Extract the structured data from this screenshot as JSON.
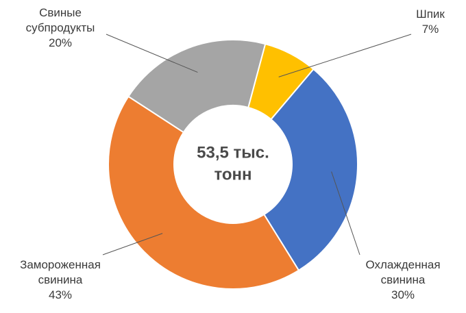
{
  "chart_data": {
    "type": "donut",
    "center_text": [
      "53,5 тыс.",
      "тонн"
    ],
    "categories": [
      [
        "Шпик"
      ],
      [
        "Охлажденная",
        "свинина"
      ],
      [
        "Замороженная",
        "свинина"
      ],
      [
        "Свиные",
        "субпродукты"
      ]
    ],
    "values": [
      7,
      30,
      43,
      20
    ],
    "value_labels": [
      "7%",
      "30%",
      "43%",
      "20%"
    ],
    "colors": [
      "#ffc000",
      "#4472c4",
      "#ed7d31",
      "#a5a5a5"
    ]
  }
}
